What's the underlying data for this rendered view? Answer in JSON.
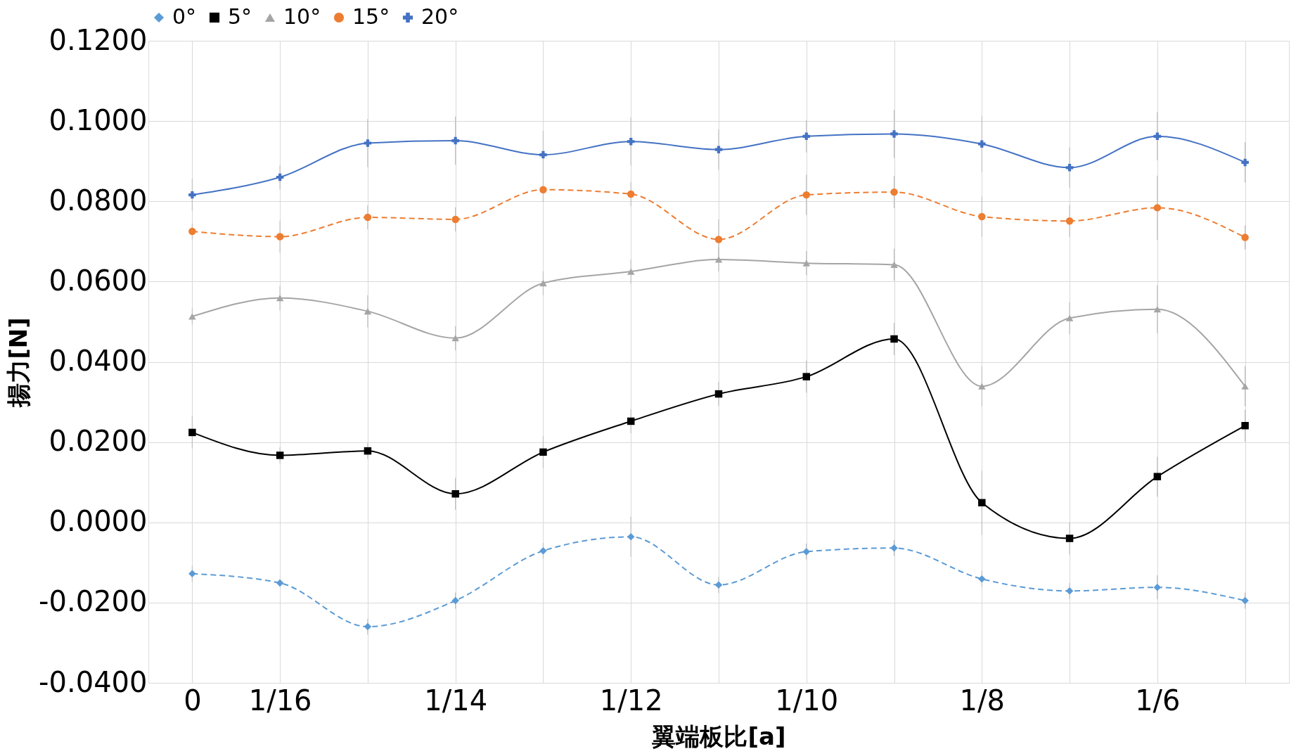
{
  "chart_data": {
    "type": "line",
    "xlabel": "翼端板比[a]",
    "ylabel": "揚力[N]",
    "categories": [
      "0",
      "1/16",
      null,
      "1/14",
      null,
      "1/12",
      null,
      "1/10",
      null,
      "1/8",
      null,
      "1/6",
      null
    ],
    "ylim": [
      -0.04,
      0.12
    ],
    "yticks": [
      {
        "value": -0.04,
        "label": "-0.0400"
      },
      {
        "value": -0.02,
        "label": "-0.0200"
      },
      {
        "value": 0,
        "label": "0.0000"
      },
      {
        "value": 0.02,
        "label": "0.0200"
      },
      {
        "value": 0.04,
        "label": "0.0400"
      },
      {
        "value": 0.06,
        "label": "0.0600"
      },
      {
        "value": 0.08,
        "label": "0.0800"
      },
      {
        "value": 0.1,
        "label": "0.1000"
      },
      {
        "value": 0.12,
        "label": "0.1200"
      }
    ],
    "grid": true,
    "legend": "top",
    "series": [
      {
        "name": "0°",
        "color": "#5b9bd5",
        "marker": "diamond",
        "line_style": "dashed",
        "values": [
          -0.0128,
          -0.0151,
          -0.026,
          -0.0195,
          -0.0071,
          -0.0036,
          -0.0156,
          -0.0073,
          -0.0064,
          -0.0141,
          -0.0171,
          -0.0162,
          -0.0195
        ],
        "errors": [
          0.002,
          0.001,
          0.002,
          0.002,
          0.002,
          0.005,
          0.002,
          0.002,
          0.002,
          0.002,
          0.002,
          0.003,
          0.002
        ]
      },
      {
        "name": "5°",
        "color": "#000000",
        "marker": "square",
        "line_style": "solid",
        "values": [
          0.0224,
          0.0167,
          0.0178,
          0.0071,
          0.0175,
          0.0252,
          0.032,
          0.0363,
          0.0457,
          0.0049,
          -0.004,
          0.0114,
          0.0241
        ],
        "errors": [
          0.004,
          0.002,
          0.002,
          0.004,
          0.004,
          0.003,
          0.003,
          0.004,
          0.004,
          0.008,
          0.004,
          0.005,
          0.004
        ]
      },
      {
        "name": "10°",
        "color": "#a5a5a5",
        "marker": "triangle",
        "line_style": "solid",
        "values": [
          0.0513,
          0.0559,
          0.0526,
          0.0459,
          0.0596,
          0.0625,
          0.0655,
          0.0646,
          0.0642,
          0.0339,
          0.0509,
          0.0531,
          0.0339
        ],
        "errors": [
          0.002,
          0.003,
          0.004,
          0.003,
          0.003,
          0.003,
          0.003,
          0.003,
          0.004,
          0.005,
          0.004,
          0.006,
          0.005
        ]
      },
      {
        "name": "15°",
        "color": "#ed7d31",
        "marker": "circle",
        "line_style": "dashed",
        "values": [
          0.0725,
          0.0712,
          0.076,
          0.0755,
          0.0829,
          0.0818,
          0.0705,
          0.0816,
          0.0823,
          0.0762,
          0.0751,
          0.0784,
          0.071
        ],
        "errors": [
          0.002,
          0.004,
          0.003,
          0.003,
          0.003,
          0.003,
          0.005,
          0.005,
          0.004,
          0.005,
          0.004,
          0.008,
          0.003
        ]
      },
      {
        "name": "20°",
        "color": "#4472c4",
        "marker": "cross",
        "line_style": "solid",
        "values": [
          0.0816,
          0.086,
          0.0945,
          0.0951,
          0.0916,
          0.0949,
          0.0929,
          0.0962,
          0.0968,
          0.0943,
          0.0884,
          0.0962,
          0.0897
        ],
        "errors": [
          0.004,
          0.003,
          0.006,
          0.006,
          0.006,
          0.006,
          0.005,
          0.004,
          0.006,
          0.007,
          0.005,
          0.006,
          0.005
        ]
      }
    ]
  }
}
